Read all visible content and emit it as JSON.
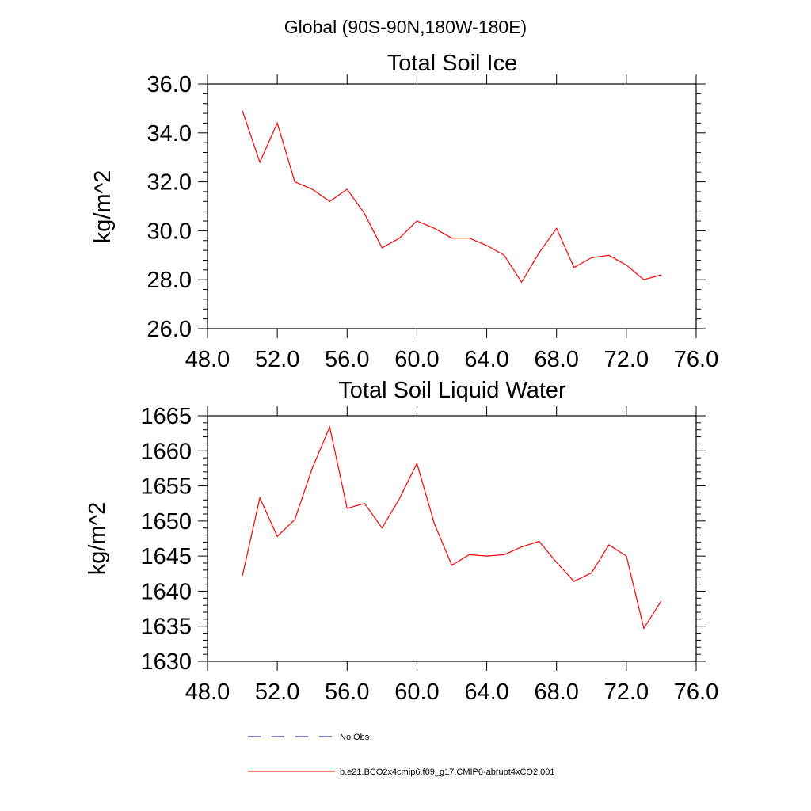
{
  "page_title": "Global (90S-90N,180W-180E)",
  "colors": {
    "series": "#ff0000",
    "obs": "#000080",
    "axis": "#000000"
  },
  "legend": [
    {
      "label": "No Obs",
      "style": "dashed",
      "color": "#000080"
    },
    {
      "label": "b.e21.BCO2x4cmip6.f09_g17.CMIP6-abrupt4xCO2.001",
      "style": "solid",
      "color": "#ff0000"
    }
  ],
  "chart_data": [
    {
      "type": "line",
      "title": "Total Soil Ice",
      "xlabel": "",
      "ylabel": "kg/m^2",
      "xlim": [
        48,
        76
      ],
      "ylim": [
        26,
        36
      ],
      "xticks": [
        "48.0",
        "52.0",
        "56.0",
        "60.0",
        "64.0",
        "68.0",
        "72.0",
        "76.0"
      ],
      "yticks": [
        "26.0",
        "28.0",
        "30.0",
        "32.0",
        "34.0",
        "36.0"
      ],
      "x": [
        50,
        51,
        52,
        53,
        54,
        55,
        56,
        57,
        58,
        59,
        60,
        61,
        62,
        63,
        64,
        65,
        66,
        67,
        68,
        69,
        70,
        71,
        72,
        73,
        74
      ],
      "series": [
        {
          "name": "b.e21.BCO2x4cmip6.f09_g17.CMIP6-abrupt4xCO2.001",
          "values": [
            34.9,
            32.8,
            34.4,
            32.0,
            31.7,
            31.2,
            31.7,
            30.7,
            29.3,
            29.7,
            30.4,
            30.1,
            29.7,
            29.7,
            29.4,
            29.0,
            27.9,
            29.1,
            30.1,
            28.5,
            28.9,
            29.0,
            28.6,
            28.0,
            28.2
          ]
        }
      ],
      "grid": false
    },
    {
      "type": "line",
      "title": "Total Soil Liquid Water",
      "xlabel": "",
      "ylabel": "kg/m^2",
      "xlim": [
        48,
        76
      ],
      "ylim": [
        1630,
        1665
      ],
      "xticks": [
        "48.0",
        "52.0",
        "56.0",
        "60.0",
        "64.0",
        "68.0",
        "72.0",
        "76.0"
      ],
      "yticks": [
        "1630",
        "1635",
        "1640",
        "1645",
        "1650",
        "1655",
        "1660",
        "1665"
      ],
      "x": [
        50,
        51,
        52,
        53,
        54,
        55,
        56,
        57,
        58,
        59,
        60,
        61,
        62,
        63,
        64,
        65,
        66,
        67,
        68,
        69,
        70,
        71,
        72,
        73,
        74
      ],
      "series": [
        {
          "name": "b.e21.BCO2x4cmip6.f09_g17.CMIP6-abrupt4xCO2.001",
          "values": [
            1642.2,
            1653.3,
            1647.8,
            1650.2,
            1657.5,
            1663.4,
            1651.8,
            1652.5,
            1649.0,
            1653.2,
            1658.2,
            1649.6,
            1643.7,
            1645.2,
            1645.0,
            1645.2,
            1646.3,
            1647.1,
            1644.1,
            1641.4,
            1642.6,
            1646.6,
            1645.0,
            1634.7,
            1638.6
          ]
        }
      ],
      "grid": false
    }
  ]
}
